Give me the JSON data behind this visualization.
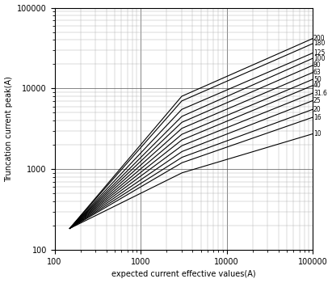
{
  "xlabel": "expected current effective values(A)",
  "ylabel": "Truncation current peak(A)",
  "xlim": [
    100,
    100000
  ],
  "ylim": [
    100,
    100000
  ],
  "ratings": [
    200,
    180,
    125,
    100,
    80,
    63,
    50,
    40,
    31.6,
    25,
    20,
    16,
    10
  ],
  "rating_labels": [
    "200",
    "180",
    "125",
    "100",
    "80",
    "63",
    "50",
    "40",
    "31.6",
    "25",
    "20",
    "16",
    "10"
  ],
  "line_color": "#000000",
  "bg_color": "#ffffff",
  "grid_major_color": "#555555",
  "grid_minor_color": "#aaaaaa",
  "curve_params": {
    "200": {
      "x_start": 150,
      "y_start": 185,
      "x_knee": 3000,
      "y_knee": 8000,
      "x_end": 50000,
      "y_end": 30000
    },
    "180": {
      "x_start": 150,
      "y_start": 185,
      "x_knee": 3000,
      "y_knee": 7000,
      "x_end": 50000,
      "y_end": 26000
    },
    "125": {
      "x_start": 150,
      "y_start": 185,
      "x_knee": 3000,
      "y_knee": 5500,
      "x_end": 50000,
      "y_end": 20000
    },
    "100": {
      "x_start": 150,
      "y_start": 185,
      "x_knee": 3000,
      "y_knee": 4500,
      "x_end": 50000,
      "y_end": 17000
    },
    "80": {
      "x_start": 150,
      "y_start": 185,
      "x_knee": 3000,
      "y_knee": 3800,
      "x_end": 50000,
      "y_end": 14000
    },
    "63": {
      "x_start": 150,
      "y_start": 185,
      "x_knee": 3000,
      "y_knee": 3200,
      "x_end": 50000,
      "y_end": 11500
    },
    "50": {
      "x_start": 150,
      "y_start": 185,
      "x_knee": 3000,
      "y_knee": 2700,
      "x_end": 50000,
      "y_end": 9500
    },
    "40": {
      "x_start": 150,
      "y_start": 185,
      "x_knee": 3000,
      "y_knee": 2300,
      "x_end": 50000,
      "y_end": 8000
    },
    "31.6": {
      "x_start": 150,
      "y_start": 185,
      "x_knee": 3000,
      "y_knee": 1950,
      "x_end": 50000,
      "y_end": 6500
    },
    "25": {
      "x_start": 150,
      "y_start": 185,
      "x_knee": 3000,
      "y_knee": 1650,
      "x_end": 50000,
      "y_end": 5300
    },
    "20": {
      "x_start": 150,
      "y_start": 185,
      "x_knee": 3000,
      "y_knee": 1400,
      "x_end": 50000,
      "y_end": 4200
    },
    "16": {
      "x_start": 150,
      "y_start": 185,
      "x_knee": 3000,
      "y_knee": 1200,
      "x_end": 50000,
      "y_end": 3400
    },
    "10": {
      "x_start": 150,
      "y_start": 185,
      "x_knee": 3000,
      "y_knee": 900,
      "x_end": 50000,
      "y_end": 2200
    }
  }
}
